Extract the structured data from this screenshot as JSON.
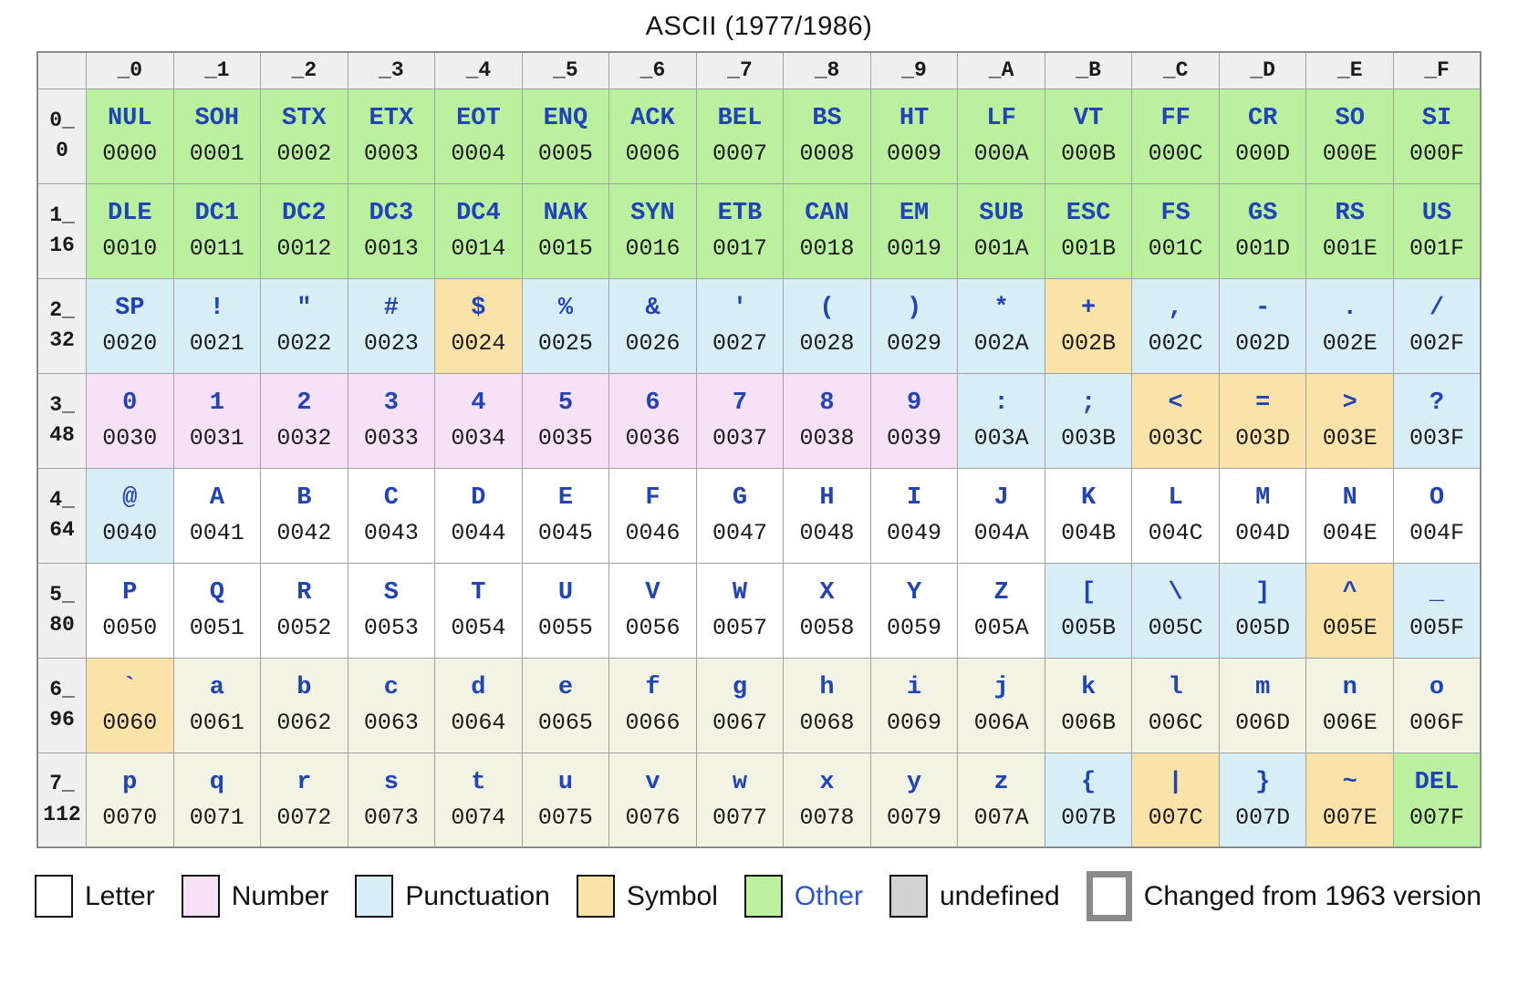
{
  "colors": {
    "letter": "#ffffff",
    "lower": "#f2f3e2",
    "number": "#f6e1f6",
    "punctuation": "#d8eef7",
    "symbol": "#fae3a8",
    "other": "#bbf19e",
    "undefined": "#d2d2d2",
    "border": "#8a8a8a",
    "grid_line": "#a2a2a2",
    "header_bg": "#efefef",
    "glyph": "#2143b8",
    "link": "#2953cc"
  },
  "chart_data": {
    "type": "table",
    "title": "ASCII (1977/1986)",
    "col_headers": [
      "_0",
      "_1",
      "_2",
      "_3",
      "_4",
      "_5",
      "_6",
      "_7",
      "_8",
      "_9",
      "_A",
      "_B",
      "_C",
      "_D",
      "_E",
      "_F"
    ],
    "rows": [
      {
        "hex": "0_",
        "dec": "0",
        "cells": [
          {
            "ch": "NUL",
            "code": "0000",
            "cat": "other",
            "changed": false
          },
          {
            "ch": "SOH",
            "code": "0001",
            "cat": "other",
            "changed": true
          },
          {
            "ch": "STX",
            "code": "0002",
            "cat": "other",
            "changed": true
          },
          {
            "ch": "ETX",
            "code": "0003",
            "cat": "other",
            "changed": true
          },
          {
            "ch": "EOT",
            "code": "0004",
            "cat": "other",
            "changed": false
          },
          {
            "ch": "ENQ",
            "code": "0005",
            "cat": "other",
            "changed": true
          },
          {
            "ch": "ACK",
            "code": "0006",
            "cat": "other",
            "changed": true
          },
          {
            "ch": "BEL",
            "code": "0007",
            "cat": "other",
            "changed": false
          },
          {
            "ch": "BS",
            "code": "0008",
            "cat": "other",
            "changed": true
          },
          {
            "ch": "HT",
            "code": "0009",
            "cat": "other",
            "changed": false
          },
          {
            "ch": "LF",
            "code": "000A",
            "cat": "other",
            "changed": false
          },
          {
            "ch": "VT",
            "code": "000B",
            "cat": "other",
            "changed": false
          },
          {
            "ch": "FF",
            "code": "000C",
            "cat": "other",
            "changed": false
          },
          {
            "ch": "CR",
            "code": "000D",
            "cat": "other",
            "changed": false
          },
          {
            "ch": "SO",
            "code": "000E",
            "cat": "other",
            "changed": false
          },
          {
            "ch": "SI",
            "code": "000F",
            "cat": "other",
            "changed": false
          }
        ]
      },
      {
        "hex": "1_",
        "dec": "16",
        "cells": [
          {
            "ch": "DLE",
            "code": "0010",
            "cat": "other",
            "changed": true
          },
          {
            "ch": "DC1",
            "code": "0011",
            "cat": "other",
            "changed": false
          },
          {
            "ch": "DC2",
            "code": "0012",
            "cat": "other",
            "changed": false
          },
          {
            "ch": "DC3",
            "code": "0013",
            "cat": "other",
            "changed": false
          },
          {
            "ch": "DC4",
            "code": "0014",
            "cat": "other",
            "changed": false
          },
          {
            "ch": "NAK",
            "code": "0015",
            "cat": "other",
            "changed": true
          },
          {
            "ch": "SYN",
            "code": "0016",
            "cat": "other",
            "changed": true
          },
          {
            "ch": "ETB",
            "code": "0017",
            "cat": "other",
            "changed": true
          },
          {
            "ch": "CAN",
            "code": "0018",
            "cat": "other",
            "changed": true
          },
          {
            "ch": "EM",
            "code": "0019",
            "cat": "other",
            "changed": true
          },
          {
            "ch": "SUB",
            "code": "001A",
            "cat": "other",
            "changed": true
          },
          {
            "ch": "ESC",
            "code": "001B",
            "cat": "other",
            "changed": true
          },
          {
            "ch": "FS",
            "code": "001C",
            "cat": "other",
            "changed": true
          },
          {
            "ch": "GS",
            "code": "001D",
            "cat": "other",
            "changed": true
          },
          {
            "ch": "RS",
            "code": "001E",
            "cat": "other",
            "changed": true
          },
          {
            "ch": "US",
            "code": "001F",
            "cat": "other",
            "changed": true
          }
        ]
      },
      {
        "hex": "2_",
        "dec": "32",
        "cells": [
          {
            "ch": "SP",
            "code": "0020",
            "cat": "punctuation",
            "changed": false
          },
          {
            "ch": "!",
            "code": "0021",
            "cat": "punctuation",
            "changed": false
          },
          {
            "ch": "\"",
            "code": "0022",
            "cat": "punctuation",
            "changed": false
          },
          {
            "ch": "#",
            "code": "0023",
            "cat": "punctuation",
            "changed": false
          },
          {
            "ch": "$",
            "code": "0024",
            "cat": "symbol",
            "changed": false
          },
          {
            "ch": "%",
            "code": "0025",
            "cat": "punctuation",
            "changed": false
          },
          {
            "ch": "&",
            "code": "0026",
            "cat": "punctuation",
            "changed": false
          },
          {
            "ch": "'",
            "code": "0027",
            "cat": "punctuation",
            "changed": false
          },
          {
            "ch": "(",
            "code": "0028",
            "cat": "punctuation",
            "changed": false
          },
          {
            "ch": ")",
            "code": "0029",
            "cat": "punctuation",
            "changed": false
          },
          {
            "ch": "*",
            "code": "002A",
            "cat": "punctuation",
            "changed": false
          },
          {
            "ch": "+",
            "code": "002B",
            "cat": "symbol",
            "changed": false
          },
          {
            "ch": ",",
            "code": "002C",
            "cat": "punctuation",
            "changed": false
          },
          {
            "ch": "-",
            "code": "002D",
            "cat": "punctuation",
            "changed": false
          },
          {
            "ch": ".",
            "code": "002E",
            "cat": "punctuation",
            "changed": false
          },
          {
            "ch": "/",
            "code": "002F",
            "cat": "punctuation",
            "changed": false
          }
        ]
      },
      {
        "hex": "3_",
        "dec": "48",
        "cells": [
          {
            "ch": "0",
            "code": "0030",
            "cat": "number",
            "changed": false
          },
          {
            "ch": "1",
            "code": "0031",
            "cat": "number",
            "changed": false
          },
          {
            "ch": "2",
            "code": "0032",
            "cat": "number",
            "changed": false
          },
          {
            "ch": "3",
            "code": "0033",
            "cat": "number",
            "changed": false
          },
          {
            "ch": "4",
            "code": "0034",
            "cat": "number",
            "changed": false
          },
          {
            "ch": "5",
            "code": "0035",
            "cat": "number",
            "changed": false
          },
          {
            "ch": "6",
            "code": "0036",
            "cat": "number",
            "changed": false
          },
          {
            "ch": "7",
            "code": "0037",
            "cat": "number",
            "changed": false
          },
          {
            "ch": "8",
            "code": "0038",
            "cat": "number",
            "changed": false
          },
          {
            "ch": "9",
            "code": "0039",
            "cat": "number",
            "changed": false
          },
          {
            "ch": ":",
            "code": "003A",
            "cat": "punctuation",
            "changed": false
          },
          {
            "ch": ";",
            "code": "003B",
            "cat": "punctuation",
            "changed": false
          },
          {
            "ch": "<",
            "code": "003C",
            "cat": "symbol",
            "changed": false
          },
          {
            "ch": "=",
            "code": "003D",
            "cat": "symbol",
            "changed": false
          },
          {
            "ch": ">",
            "code": "003E",
            "cat": "symbol",
            "changed": false
          },
          {
            "ch": "?",
            "code": "003F",
            "cat": "punctuation",
            "changed": false
          }
        ]
      },
      {
        "hex": "4_",
        "dec": "64",
        "cells": [
          {
            "ch": "@",
            "code": "0040",
            "cat": "punctuation",
            "changed": true
          },
          {
            "ch": "A",
            "code": "0041",
            "cat": "letter",
            "changed": false
          },
          {
            "ch": "B",
            "code": "0042",
            "cat": "letter",
            "changed": false
          },
          {
            "ch": "C",
            "code": "0043",
            "cat": "letter",
            "changed": false
          },
          {
            "ch": "D",
            "code": "0044",
            "cat": "letter",
            "changed": false
          },
          {
            "ch": "E",
            "code": "0045",
            "cat": "letter",
            "changed": false
          },
          {
            "ch": "F",
            "code": "0046",
            "cat": "letter",
            "changed": false
          },
          {
            "ch": "G",
            "code": "0047",
            "cat": "letter",
            "changed": false
          },
          {
            "ch": "H",
            "code": "0048",
            "cat": "letter",
            "changed": false
          },
          {
            "ch": "I",
            "code": "0049",
            "cat": "letter",
            "changed": false
          },
          {
            "ch": "J",
            "code": "004A",
            "cat": "letter",
            "changed": false
          },
          {
            "ch": "K",
            "code": "004B",
            "cat": "letter",
            "changed": false
          },
          {
            "ch": "L",
            "code": "004C",
            "cat": "letter",
            "changed": false
          },
          {
            "ch": "M",
            "code": "004D",
            "cat": "letter",
            "changed": false
          },
          {
            "ch": "N",
            "code": "004E",
            "cat": "letter",
            "changed": false
          },
          {
            "ch": "O",
            "code": "004F",
            "cat": "letter",
            "changed": false
          }
        ]
      },
      {
        "hex": "5_",
        "dec": "80",
        "cells": [
          {
            "ch": "P",
            "code": "0050",
            "cat": "letter",
            "changed": false
          },
          {
            "ch": "Q",
            "code": "0051",
            "cat": "letter",
            "changed": false
          },
          {
            "ch": "R",
            "code": "0052",
            "cat": "letter",
            "changed": false
          },
          {
            "ch": "S",
            "code": "0053",
            "cat": "letter",
            "changed": false
          },
          {
            "ch": "T",
            "code": "0054",
            "cat": "letter",
            "changed": false
          },
          {
            "ch": "U",
            "code": "0055",
            "cat": "letter",
            "changed": false
          },
          {
            "ch": "V",
            "code": "0056",
            "cat": "letter",
            "changed": false
          },
          {
            "ch": "W",
            "code": "0057",
            "cat": "letter",
            "changed": false
          },
          {
            "ch": "X",
            "code": "0058",
            "cat": "letter",
            "changed": false
          },
          {
            "ch": "Y",
            "code": "0059",
            "cat": "letter",
            "changed": false
          },
          {
            "ch": "Z",
            "code": "005A",
            "cat": "letter",
            "changed": false
          },
          {
            "ch": "[",
            "code": "005B",
            "cat": "punctuation",
            "changed": false
          },
          {
            "ch": "\\",
            "code": "005C",
            "cat": "punctuation",
            "changed": true
          },
          {
            "ch": "]",
            "code": "005D",
            "cat": "punctuation",
            "changed": false
          },
          {
            "ch": "^",
            "code": "005E",
            "cat": "symbol",
            "changed": true
          },
          {
            "ch": "_",
            "code": "005F",
            "cat": "punctuation",
            "changed": true
          }
        ]
      },
      {
        "hex": "6_",
        "dec": "96",
        "cells": [
          {
            "ch": "`",
            "code": "0060",
            "cat": "symbol",
            "changed": true
          },
          {
            "ch": "a",
            "code": "0061",
            "cat": "lower",
            "changed": false
          },
          {
            "ch": "b",
            "code": "0062",
            "cat": "lower",
            "changed": false
          },
          {
            "ch": "c",
            "code": "0063",
            "cat": "lower",
            "changed": false
          },
          {
            "ch": "d",
            "code": "0064",
            "cat": "lower",
            "changed": false
          },
          {
            "ch": "e",
            "code": "0065",
            "cat": "lower",
            "changed": false
          },
          {
            "ch": "f",
            "code": "0066",
            "cat": "lower",
            "changed": false
          },
          {
            "ch": "g",
            "code": "0067",
            "cat": "lower",
            "changed": false
          },
          {
            "ch": "h",
            "code": "0068",
            "cat": "lower",
            "changed": false
          },
          {
            "ch": "i",
            "code": "0069",
            "cat": "lower",
            "changed": false
          },
          {
            "ch": "j",
            "code": "006A",
            "cat": "lower",
            "changed": false
          },
          {
            "ch": "k",
            "code": "006B",
            "cat": "lower",
            "changed": false
          },
          {
            "ch": "l",
            "code": "006C",
            "cat": "lower",
            "changed": false
          },
          {
            "ch": "m",
            "code": "006D",
            "cat": "lower",
            "changed": false
          },
          {
            "ch": "n",
            "code": "006E",
            "cat": "lower",
            "changed": false
          },
          {
            "ch": "o",
            "code": "006F",
            "cat": "lower",
            "changed": false
          }
        ]
      },
      {
        "hex": "7_",
        "dec": "112",
        "cells": [
          {
            "ch": "p",
            "code": "0070",
            "cat": "lower",
            "changed": false
          },
          {
            "ch": "q",
            "code": "0071",
            "cat": "lower",
            "changed": false
          },
          {
            "ch": "r",
            "code": "0072",
            "cat": "lower",
            "changed": false
          },
          {
            "ch": "s",
            "code": "0073",
            "cat": "lower",
            "changed": false
          },
          {
            "ch": "t",
            "code": "0074",
            "cat": "lower",
            "changed": false
          },
          {
            "ch": "u",
            "code": "0075",
            "cat": "lower",
            "changed": false
          },
          {
            "ch": "v",
            "code": "0076",
            "cat": "lower",
            "changed": false
          },
          {
            "ch": "w",
            "code": "0077",
            "cat": "lower",
            "changed": false
          },
          {
            "ch": "x",
            "code": "0078",
            "cat": "lower",
            "changed": false
          },
          {
            "ch": "y",
            "code": "0079",
            "cat": "lower",
            "changed": false
          },
          {
            "ch": "z",
            "code": "007A",
            "cat": "lower",
            "changed": false
          },
          {
            "ch": "{",
            "code": "007B",
            "cat": "punctuation",
            "changed": false
          },
          {
            "ch": "|",
            "code": "007C",
            "cat": "symbol",
            "changed": true
          },
          {
            "ch": "}",
            "code": "007D",
            "cat": "punctuation",
            "changed": false
          },
          {
            "ch": "~",
            "code": "007E",
            "cat": "symbol",
            "changed": true
          },
          {
            "ch": "DEL",
            "code": "007F",
            "cat": "other",
            "changed": false
          }
        ]
      }
    ],
    "legend": [
      {
        "label": "Letter",
        "cat": "letter",
        "link": false
      },
      {
        "label": "Number",
        "cat": "number",
        "link": false
      },
      {
        "label": "Punctuation",
        "cat": "punctuation",
        "link": false
      },
      {
        "label": "Symbol",
        "cat": "symbol",
        "link": false
      },
      {
        "label": "Other",
        "cat": "other",
        "link": true
      },
      {
        "label": "undefined",
        "cat": "undefined",
        "link": false
      },
      {
        "label": "Changed from 1963 version",
        "cat": "changed",
        "link": false
      }
    ]
  }
}
